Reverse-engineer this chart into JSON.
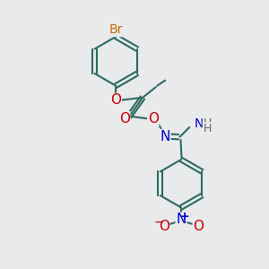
{
  "bg_color": "#e8eaec",
  "bond_color": "#2d6b5e",
  "bond_width": 1.5,
  "atom_colors": {
    "Br": "#cc6600",
    "O": "#cc0000",
    "N": "#0000cc",
    "C": "#2d6b5e",
    "H": "#666666"
  },
  "fs": 10
}
